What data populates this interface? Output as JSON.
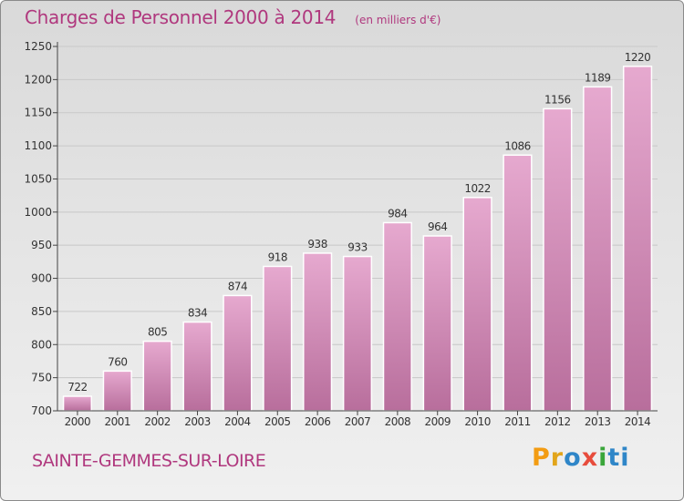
{
  "header": {
    "title": "Charges de Personnel 2000 à 2014",
    "unit_note": "(en milliers d'€)"
  },
  "footer": {
    "commune": "SAINTE-GEMMES-SUR-LOIRE",
    "logo_text": "Proxiti"
  },
  "colors": {
    "accent": "#b0387e",
    "bar_top": "#e6a9cf",
    "bar_bottom": "#b86e9c"
  },
  "chart_data": {
    "type": "bar",
    "title": "Charges de Personnel 2000 à 2014",
    "subtitle": "(en milliers d'€)",
    "xlabel": "",
    "ylabel": "",
    "categories": [
      "2000",
      "2001",
      "2002",
      "2003",
      "2004",
      "2005",
      "2006",
      "2007",
      "2008",
      "2009",
      "2010",
      "2011",
      "2012",
      "2013",
      "2014"
    ],
    "values": [
      722,
      760,
      805,
      834,
      874,
      918,
      938,
      933,
      984,
      964,
      1022,
      1086,
      1156,
      1189,
      1220
    ],
    "data_labels": [
      "722",
      "760",
      "805",
      "834",
      "874",
      "918",
      "938",
      "933",
      "984",
      "964",
      "1022",
      "1086",
      "1156",
      "1189",
      "1220"
    ],
    "ylim": [
      700,
      1250
    ],
    "yticks": [
      "700",
      "750",
      "800",
      "850",
      "900",
      "950",
      "1000",
      "1050",
      "1100",
      "1150",
      "1200",
      "1250"
    ],
    "grid": true,
    "legend": "none"
  }
}
